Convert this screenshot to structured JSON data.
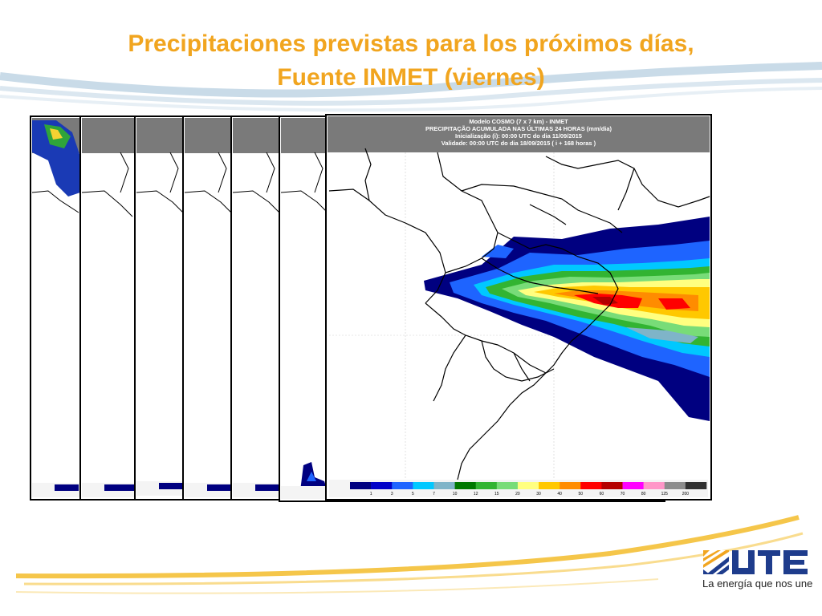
{
  "slide": {
    "title_line1": "Precipitaciones previstas para los próximos días,",
    "title_line2": "Fuente INMET (viernes)"
  },
  "front_map": {
    "header": {
      "line1": "Modelo COSMO (7 x 7 km) - INMET",
      "line2": "PRECIPITAÇÃO ACUMULADA NAS ÚLTIMAS 24 HORAS (mm/dia)",
      "line3": "Inicialização (i): 00:00 UTC do dia 11/09/2015",
      "line4": "Validade: 00:00 UTC do dia 18/09/2015 ( i + 168 horas )"
    },
    "legend_ticks": [
      "1",
      "3",
      "5",
      "7",
      "10",
      "12",
      "15",
      "20",
      "30",
      "40",
      "50",
      "60",
      "70",
      "80",
      "125",
      "200"
    ],
    "legend_colors": [
      "#000080",
      "#0000c8",
      "#1e64ff",
      "#00c8ff",
      "#7fb4c8",
      "#007800",
      "#32b432",
      "#78dc78",
      "#ffff80",
      "#ffc800",
      "#ff8c00",
      "#ff0000",
      "#b40000",
      "#ff00ff",
      "#ff96c8",
      "#8c8c8c",
      "#303030"
    ]
  },
  "logo": {
    "brand": "UTE",
    "tagline": "La energía que nos une",
    "brand_color": "#1e3c8c",
    "accent_color": "#f1a51f"
  }
}
